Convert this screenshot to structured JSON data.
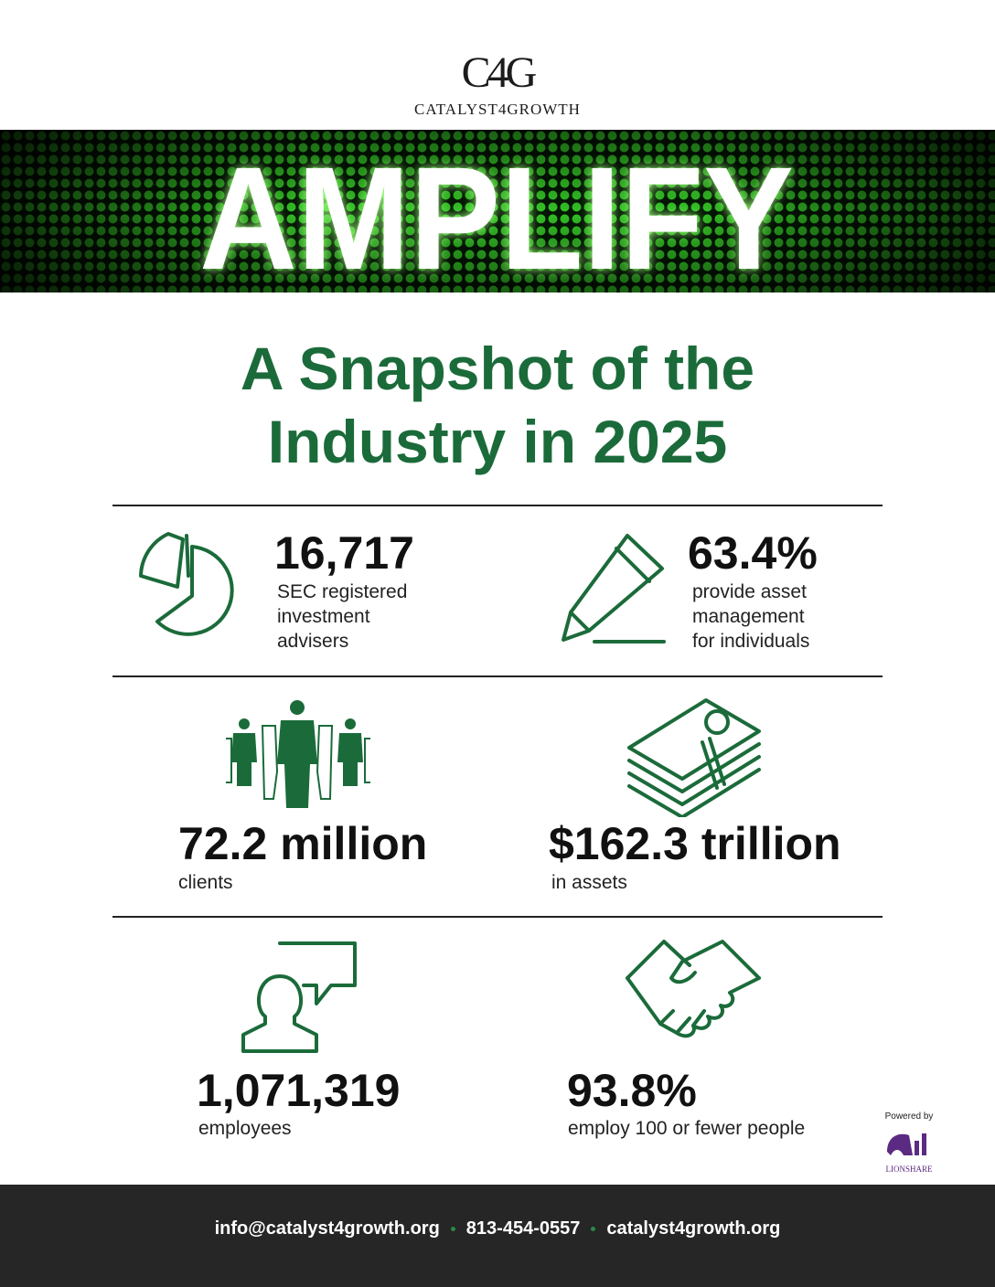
{
  "header": {
    "logo_mark": "C4G",
    "logo_text": "CATALYST4GROWTH",
    "banner": "AMPLIFY"
  },
  "title": {
    "lines": [
      "A Snapshot of the",
      "Industry in 2025"
    ]
  },
  "stats": [
    {
      "value": "16,717",
      "description": [
        "SEC registered",
        "investment",
        "advisers"
      ]
    },
    {
      "value": "63.4%",
      "description": [
        "provide asset",
        "management",
        "for individuals"
      ]
    },
    {
      "value": "72.2 million",
      "description": [
        "clients"
      ]
    },
    {
      "value": "$162.3 trillion",
      "description": [
        "in assets"
      ]
    },
    {
      "value": "1,071,319",
      "description": [
        "employees"
      ]
    },
    {
      "value": "93.8%",
      "description": [
        "employ 100 or fewer people"
      ]
    }
  ],
  "powered_by": {
    "label": "Powered by",
    "brand": "LIONSHARE"
  },
  "footer": {
    "email": "info@catalyst4growth.org",
    "phone": "813-454-0557",
    "website": "catalyst4growth.org"
  }
}
